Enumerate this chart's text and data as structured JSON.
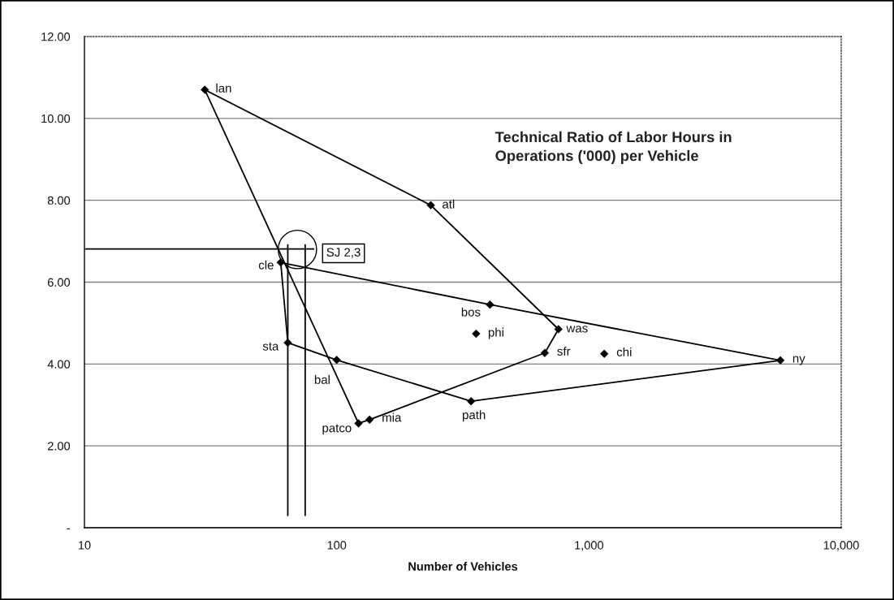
{
  "chart_data": {
    "type": "scatter",
    "title": "Technical Ratio of Labor Hours in\nOperations ('000) per Vehicle",
    "xlabel": "Number of Vehicles",
    "log": "x",
    "xlim": [
      10,
      10000
    ],
    "ylim": [
      0,
      12
    ],
    "xticks": [
      10,
      100,
      {
        "value": 1000,
        "label": "1,000"
      },
      {
        "value": 10000,
        "label": "10,000"
      }
    ],
    "yticks": [
      {
        "value": 0,
        "label": "-"
      },
      {
        "value": 2,
        "label": "2.00"
      },
      {
        "value": 4,
        "label": "4.00"
      },
      {
        "value": 6,
        "label": "6.00"
      },
      {
        "value": 8,
        "label": "8.00"
      },
      {
        "value": 10,
        "label": "10.00"
      },
      {
        "value": 12,
        "label": "12.00"
      }
    ],
    "grid": "y",
    "legend": false,
    "marker": "diamond",
    "line_style": "solid",
    "series": [
      {
        "type": "line",
        "marker": "none",
        "color": "#000000",
        "x": [
          30,
          236,
          757
        ],
        "values": [
          10.7,
          7.88,
          4.85
        ]
      },
      {
        "type": "line",
        "marker": "none",
        "color": "#000000",
        "x": [
          122,
          135,
          668,
          757
        ],
        "values": [
          2.55,
          2.64,
          4.27,
          4.85
        ]
      },
      {
        "type": "line",
        "marker": "none",
        "color": "#000000",
        "x": [
          30,
          122
        ],
        "values": [
          10.7,
          2.55
        ]
      },
      {
        "type": "line",
        "marker": "none",
        "color": "#000000",
        "x": [
          60,
          405,
          5740
        ],
        "values": [
          6.48,
          5.45,
          4.09
        ]
      },
      {
        "type": "line",
        "marker": "none",
        "color": "#000000",
        "x": [
          64,
          100,
          341,
          5740
        ],
        "values": [
          4.52,
          4.1,
          3.09,
          4.09
        ]
      },
      {
        "type": "line",
        "marker": "none",
        "color": "#000000",
        "x": [
          60,
          64
        ],
        "values": [
          6.48,
          4.52
        ]
      },
      {
        "type": "line",
        "marker": "none",
        "color": "#000000",
        "x": [
          10,
          81
        ],
        "values": [
          6.81,
          6.81
        ]
      },
      {
        "type": "line",
        "marker": "none",
        "color": "#000000",
        "x": [
          64,
          64
        ],
        "values": [
          6.91,
          0.3
        ]
      },
      {
        "type": "line",
        "marker": "none",
        "color": "#000000",
        "x": [
          75,
          75
        ],
        "values": [
          6.91,
          0.3
        ]
      },
      {
        "name": "lan",
        "color": "#000000",
        "x": [
          30
        ],
        "values": [
          10.7
        ]
      },
      {
        "name": "atl",
        "color": "#000000",
        "x": [
          236
        ],
        "values": [
          7.88
        ]
      },
      {
        "name": "cle",
        "color": "#000000",
        "x": [
          60
        ],
        "values": [
          6.48
        ]
      },
      {
        "name": "sta",
        "color": "#000000",
        "x": [
          64
        ],
        "values": [
          4.52
        ]
      },
      {
        "name": "bal",
        "color": "#000000",
        "x": [
          100
        ],
        "values": [
          4.1
        ]
      },
      {
        "name": "patco",
        "color": "#000000",
        "x": [
          122
        ],
        "values": [
          2.55
        ]
      },
      {
        "name": "mia",
        "color": "#000000",
        "x": [
          135
        ],
        "values": [
          2.64
        ]
      },
      {
        "name": "bos",
        "color": "#000000",
        "x": [
          405
        ],
        "values": [
          5.45
        ]
      },
      {
        "name": "phi",
        "color": "#000000",
        "x": [
          357
        ],
        "values": [
          4.74
        ]
      },
      {
        "name": "was",
        "color": "#000000",
        "x": [
          757
        ],
        "values": [
          4.85
        ]
      },
      {
        "name": "sfr",
        "color": "#000000",
        "x": [
          668
        ],
        "values": [
          4.27
        ]
      },
      {
        "name": "chi",
        "color": "#000000",
        "x": [
          1150
        ],
        "values": [
          4.25
        ]
      },
      {
        "name": "ny",
        "color": "#000000",
        "x": [
          5740
        ],
        "values": [
          4.09
        ]
      },
      {
        "name": "path",
        "color": "#000000",
        "x": [
          341
        ],
        "values": [
          3.09
        ]
      }
    ],
    "annotations": [
      "SJ 2,3"
    ]
  }
}
